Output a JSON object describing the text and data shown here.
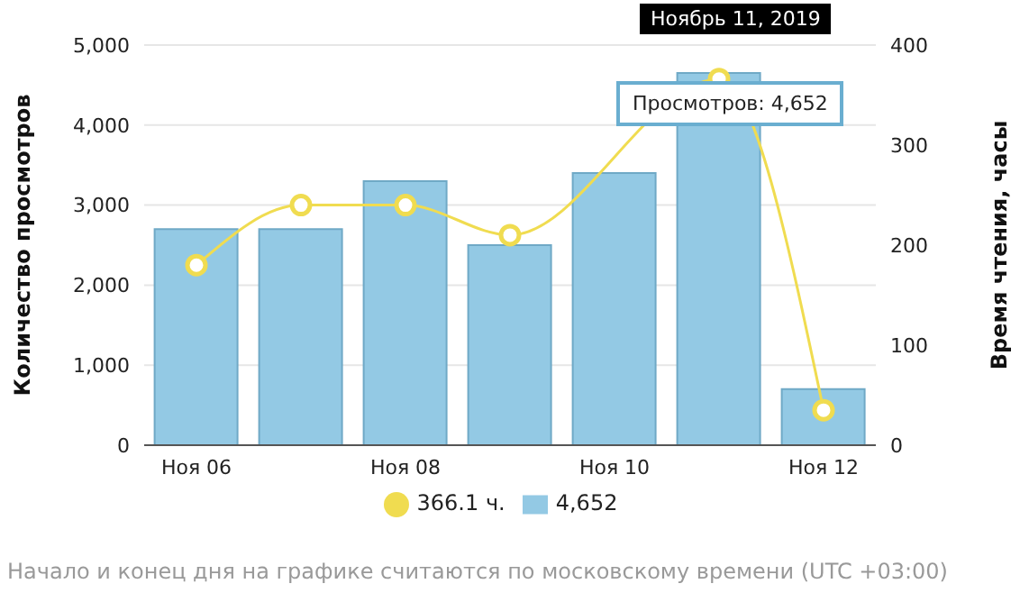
{
  "chart_data": {
    "type": "bar",
    "ylabel": "Количество просмотров",
    "y2label": "Время чтения, часы",
    "categories": [
      "Ноя 06",
      null,
      "Ноя 08",
      null,
      "Ноя 10",
      null,
      "Ноя 12"
    ],
    "series": [
      {
        "name": "4,652",
        "color": "#93c9e4",
        "values": [
          2700,
          2700,
          3300,
          2500,
          3400,
          4652,
          700
        ]
      },
      {
        "name": "366.1 ч.",
        "type": "line",
        "axis": "y2",
        "color": "#f0dc50",
        "values": [
          180,
          240,
          240,
          210,
          null,
          366.1,
          35
        ]
      }
    ],
    "ylim": [
      0,
      5000
    ],
    "yticks": [
      0,
      {
        "value": 1000,
        "label": "1,000"
      },
      {
        "value": 2000,
        "label": "2,000"
      },
      {
        "value": 3000,
        "label": "3,000"
      },
      {
        "value": 4000,
        "label": "4,000"
      },
      {
        "value": 5000,
        "label": "5,000"
      }
    ],
    "y2lim": [
      0,
      400
    ],
    "y2ticks": [
      0,
      100,
      200,
      300,
      400
    ],
    "grid": "y",
    "legend": "bottom",
    "marker": "circle",
    "annotations": [
      "Просмотров: 4,652",
      "Ноябрь 11, 2019",
      "Начало и конец дня на графике считаются по московскому времени (UTC +03:00)"
    ]
  }
}
